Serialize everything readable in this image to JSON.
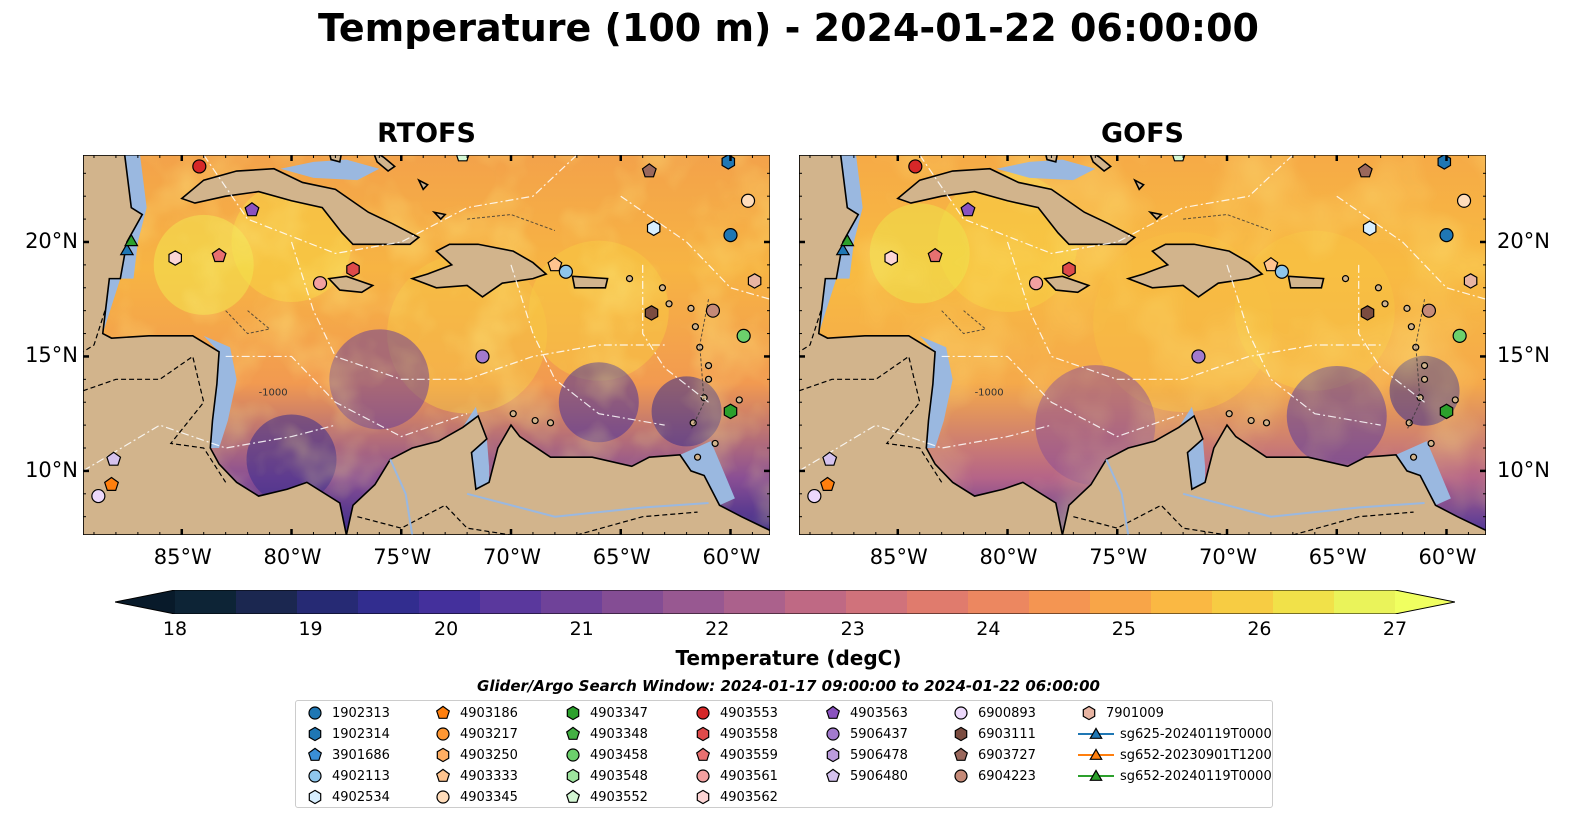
{
  "title": "Temperature (100 m) - 2024-01-22 06:00:00",
  "panels": [
    {
      "title": "RTOFS",
      "variant": "rtofs"
    },
    {
      "title": "GOFS",
      "variant": "gofs"
    }
  ],
  "lon_ticks": [
    "85°W",
    "80°W",
    "75°W",
    "70°W",
    "65°W",
    "60°W"
  ],
  "lat_ticks": [
    "20°N",
    "15°N",
    "10°N"
  ],
  "extent": {
    "lon": [
      -89.5,
      -58.2
    ],
    "lat": [
      7.2,
      23.8
    ]
  },
  "contour_label": "-1000",
  "colorbar": {
    "label": "Temperature (degC)",
    "ticks": [
      "18",
      "19",
      "20",
      "21",
      "22",
      "23",
      "24",
      "25",
      "26",
      "27"
    ],
    "min": 18,
    "max": 27,
    "colors": [
      "#0d2436",
      "#1b2750",
      "#262a74",
      "#322d8f",
      "#44309c",
      "#5a389d",
      "#6f4299",
      "#844d94",
      "#985891",
      "#ab618c",
      "#bf6984",
      "#d0727b",
      "#e07b6d",
      "#ec8760",
      "#f49552",
      "#f8a548",
      "#fab843",
      "#f7cc43",
      "#f1e149",
      "#eaf35a"
    ]
  },
  "legend": {
    "title": "Glider/Argo Search Window: 2024-01-17 09:00:00 to 2024-01-22 06:00:00",
    "items": [
      {
        "name": "1902313",
        "marker": "circle",
        "color": "#1f77b4"
      },
      {
        "name": "1902314",
        "marker": "hexagon",
        "color": "#1f77b4"
      },
      {
        "name": "3901686",
        "marker": "pentagon",
        "color": "#3a8fd6"
      },
      {
        "name": "4902113",
        "marker": "circle",
        "color": "#8ec6ec"
      },
      {
        "name": "4902534",
        "marker": "hexagon",
        "color": "#d8efff"
      },
      {
        "name": "4903186",
        "marker": "pentagon",
        "color": "#ff7f0e"
      },
      {
        "name": "4903217",
        "marker": "circle",
        "color": "#ff9733"
      },
      {
        "name": "4903250",
        "marker": "hexagon",
        "color": "#ffae63"
      },
      {
        "name": "4903333",
        "marker": "pentagon",
        "color": "#ffc48f"
      },
      {
        "name": "4903345",
        "marker": "circle",
        "color": "#ffdcba"
      },
      {
        "name": "4903347",
        "marker": "hexagon",
        "color": "#2ca02c"
      },
      {
        "name": "4903348",
        "marker": "pentagon",
        "color": "#43b043"
      },
      {
        "name": "4903458",
        "marker": "circle",
        "color": "#6cd06c"
      },
      {
        "name": "4903548",
        "marker": "hexagon",
        "color": "#9ee39e"
      },
      {
        "name": "4903552",
        "marker": "pentagon",
        "color": "#d4f7d4"
      },
      {
        "name": "4903553",
        "marker": "circle",
        "color": "#d62728"
      },
      {
        "name": "4903558",
        "marker": "hexagon",
        "color": "#de4a4a"
      },
      {
        "name": "4903559",
        "marker": "pentagon",
        "color": "#e87070"
      },
      {
        "name": "4903561",
        "marker": "circle",
        "color": "#f2a0a0"
      },
      {
        "name": "4903562",
        "marker": "hexagon",
        "color": "#fcd5d5"
      },
      {
        "name": "4903563",
        "marker": "pentagon",
        "color": "#8a52bf"
      },
      {
        "name": "5906437",
        "marker": "circle",
        "color": "#a27acd"
      },
      {
        "name": "5906478",
        "marker": "hexagon",
        "color": "#bb9cdc"
      },
      {
        "name": "5906480",
        "marker": "pentagon",
        "color": "#d5c2ee"
      },
      {
        "name": "6900893",
        "marker": "circle",
        "color": "#ecd8fb"
      },
      {
        "name": "6903111",
        "marker": "hexagon",
        "color": "#7b4c40"
      },
      {
        "name": "6903727",
        "marker": "pentagon",
        "color": "#9a685c"
      },
      {
        "name": "6904223",
        "marker": "circle",
        "color": "#c58a78"
      },
      {
        "name": "7901009",
        "marker": "hexagon",
        "color": "#e8b4a2"
      },
      {
        "name": "sg625-20240119T0000",
        "marker": "triangle-line",
        "color": "#1f77b4"
      },
      {
        "name": "sg652-20230901T1200",
        "marker": "triangle-line",
        "color": "#ff7f0e"
      },
      {
        "name": "sg652-20240119T0000",
        "marker": "triangle-line",
        "color": "#2ca02c"
      }
    ]
  },
  "floats": [
    {
      "id": "1902313",
      "lon": -60.0,
      "lat": 20.3
    },
    {
      "id": "1902314",
      "lon": -60.1,
      "lat": 23.5
    },
    {
      "id": "4902113",
      "lon": -67.5,
      "lat": 18.7
    },
    {
      "id": "4902534",
      "lon": -63.5,
      "lat": 20.6
    },
    {
      "id": "4903186",
      "lon": -88.2,
      "lat": 9.4
    },
    {
      "id": "4903345",
      "lon": -59.2,
      "lat": 21.8
    },
    {
      "id": "4903347",
      "lon": -60.0,
      "lat": 12.6
    },
    {
      "id": "4903458",
      "lon": -59.4,
      "lat": 15.9
    },
    {
      "id": "4903552",
      "lon": -72.2,
      "lat": 23.8
    },
    {
      "id": "4903553",
      "lon": -84.2,
      "lat": 23.3
    },
    {
      "id": "4903558",
      "lon": -77.2,
      "lat": 18.8
    },
    {
      "id": "4903559",
      "lon": -83.3,
      "lat": 19.4
    },
    {
      "id": "4903561",
      "lon": -78.7,
      "lat": 18.2
    },
    {
      "id": "4903562",
      "lon": -85.3,
      "lat": 19.3
    },
    {
      "id": "4903563",
      "lon": -81.8,
      "lat": 21.4
    },
    {
      "id": "5906437",
      "lon": -71.3,
      "lat": 15.0
    },
    {
      "id": "5906480",
      "lon": -88.1,
      "lat": 10.5
    },
    {
      "id": "6900893",
      "lon": -88.8,
      "lat": 8.9
    },
    {
      "id": "6903111",
      "lon": -63.6,
      "lat": 16.9
    },
    {
      "id": "6903727",
      "lon": -63.7,
      "lat": 23.1
    },
    {
      "id": "6904223",
      "lon": -60.8,
      "lat": 17.0
    },
    {
      "id": "7901009",
      "lon": -58.9,
      "lat": 18.3
    },
    {
      "id": "4903333",
      "lon": -68.0,
      "lat": 19.0
    },
    {
      "id": "sg625-20240119T0000",
      "lon": -87.5,
      "lat": 19.6
    },
    {
      "id": "sg652-20240119T0000",
      "lon": -87.3,
      "lat": 20.0
    }
  ]
}
